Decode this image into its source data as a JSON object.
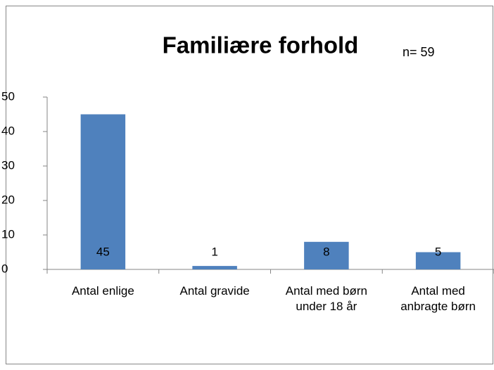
{
  "chart_data": {
    "type": "bar",
    "title": "Familiære forhold",
    "annotation": "n= 59",
    "categories": [
      "Antal enlige",
      "Antal gravide",
      "Antal med børn under 18 år",
      "Antal med anbragte børn"
    ],
    "values": [
      45,
      1,
      8,
      5
    ],
    "color": "#4f81bd",
    "ylim": [
      0,
      50
    ],
    "yticks": [
      0,
      10,
      20,
      30,
      40,
      50
    ],
    "grid": false
  }
}
